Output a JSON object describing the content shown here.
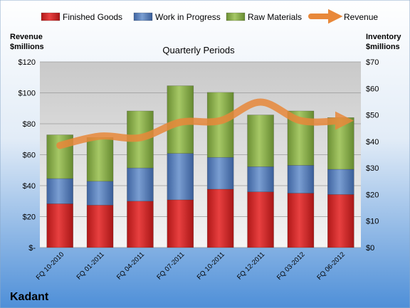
{
  "company": "Kadant",
  "chart_data": {
    "type": "bar",
    "stacked": true,
    "title": "Quarterly Periods",
    "categories": [
      "FQ 10-2010",
      "FQ 01-2011",
      "FQ 04-2011",
      "FQ 07-2011",
      "FQ 10-2011",
      "FQ 12-2011",
      "FQ 03-2012",
      "FQ 06-2012"
    ],
    "series": [
      {
        "name": "Finished Goods",
        "axis": "right",
        "color": "#d42a2a",
        "values": [
          16.5,
          16,
          17.5,
          18,
          22,
          21,
          20.5,
          20
        ]
      },
      {
        "name": "Work in Progress",
        "axis": "right",
        "color": "#5b80b8",
        "values": [
          9.5,
          9,
          12.5,
          17.5,
          12,
          9.5,
          10.5,
          9.5
        ]
      },
      {
        "name": "Raw Materials",
        "axis": "right",
        "color": "#8db04c",
        "values": [
          16.5,
          16.5,
          21.5,
          25.5,
          24.5,
          19.5,
          20.5,
          19.5
        ]
      },
      {
        "name": "Revenue",
        "type": "line",
        "axis": "left",
        "color": "#e8883a",
        "values": [
          66,
          72,
          71,
          81,
          82,
          94,
          82,
          82
        ]
      }
    ],
    "left_axis": {
      "label_line1": "Revenue",
      "label_line2": "$millions",
      "ylim": [
        0,
        120
      ],
      "ticks": [
        "$-",
        "$20",
        "$40",
        "$60",
        "$80",
        "$100",
        "$120"
      ]
    },
    "right_axis": {
      "label_line1": "Inventory",
      "label_line2": "$millions",
      "ylim": [
        0,
        70
      ],
      "ticks": [
        "$0",
        "$10",
        "$20",
        "$30",
        "$40",
        "$50",
        "$60",
        "$70"
      ]
    },
    "legend": [
      "Finished Goods",
      "Work in Progress",
      "Raw Materials",
      "Revenue"
    ],
    "legend_position": "top",
    "grid": true
  }
}
